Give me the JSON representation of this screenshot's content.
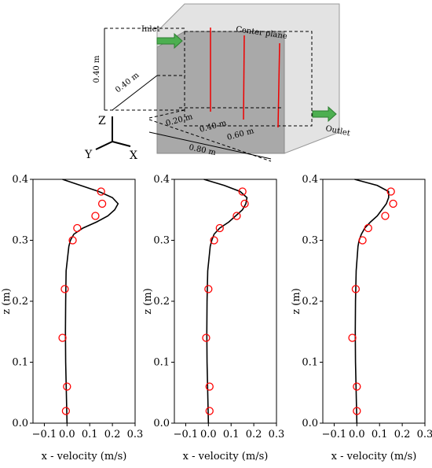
{
  "diagram": {
    "inlet": "Inlet",
    "center_plane": "Center plane",
    "height": "0.40 m",
    "depth": "0.40 m",
    "pos1": "0.20 m",
    "pos2": "0.40 m",
    "pos3": "0.60 m",
    "length": "0.80 m",
    "outlet": "Outlet",
    "axis_z": "Z",
    "axis_y": "Y",
    "axis_x": "X"
  },
  "chart_data": [
    {
      "type": "line",
      "xlabel": "x - velocity (m/s)",
      "ylabel": "z (m)",
      "xlim": [
        -0.15,
        0.3
      ],
      "ylim": [
        0,
        0.4
      ],
      "xticks": [
        {
          "value": -0.1,
          "label": "−0.1"
        },
        {
          "value": 0,
          "label": "0.0"
        },
        0.1,
        0.2,
        0.3
      ],
      "yticks": [
        {
          "value": 0,
          "label": "0.0"
        },
        0.1,
        0.2,
        0.3,
        0.4
      ],
      "series": [
        {
          "style": "line",
          "color": "#000000",
          "x": [
            0.0,
            -0.003,
            -0.006,
            -0.007,
            -0.006,
            -0.004,
            0.008,
            0.015,
            0.03,
            0.07,
            0.13,
            0.18,
            0.21,
            0.225,
            0.2,
            0.14,
            0.06,
            -0.02
          ],
          "values": [
            0,
            0.05,
            0.1,
            0.15,
            0.2,
            0.25,
            0.29,
            0.3,
            0.31,
            0.32,
            0.33,
            0.34,
            0.35,
            0.36,
            0.37,
            0.38,
            0.39,
            0.4
          ]
        },
        {
          "style": "scatter",
          "color": "#ff0000",
          "x": [
            0.15,
            0.155,
            0.125,
            0.045,
            0.025,
            -0.01,
            -0.02,
            0.0,
            -0.005
          ],
          "values": [
            0.38,
            0.36,
            0.34,
            0.32,
            0.3,
            0.22,
            0.14,
            0.06,
            0.02
          ]
        }
      ]
    },
    {
      "type": "line",
      "xlabel": "x - velocity (m/s)",
      "ylabel": "z (m)",
      "xlim": [
        -0.15,
        0.3
      ],
      "ylim": [
        0,
        0.4
      ],
      "xticks": [
        {
          "value": -0.1,
          "label": "−0.1"
        },
        {
          "value": 0,
          "label": "0.0"
        },
        0.1,
        0.2,
        0.3
      ],
      "yticks": [
        {
          "value": 0,
          "label": "0.0"
        },
        0.1,
        0.2,
        0.3,
        0.4
      ],
      "series": [
        {
          "style": "line",
          "color": "#000000",
          "x": [
            0.0,
            -0.003,
            -0.006,
            -0.007,
            -0.006,
            -0.003,
            0.008,
            0.015,
            0.025,
            0.05,
            0.09,
            0.12,
            0.15,
            0.165,
            0.17,
            0.14,
            0.07,
            -0.02
          ],
          "values": [
            0,
            0.05,
            0.1,
            0.15,
            0.2,
            0.25,
            0.29,
            0.3,
            0.31,
            0.32,
            0.33,
            0.34,
            0.35,
            0.36,
            0.37,
            0.38,
            0.39,
            0.4
          ]
        },
        {
          "style": "scatter",
          "color": "#ff0000",
          "x": [
            0.15,
            0.16,
            0.125,
            0.05,
            0.025,
            0.0,
            -0.01,
            0.005,
            0.005
          ],
          "values": [
            0.38,
            0.36,
            0.34,
            0.32,
            0.3,
            0.22,
            0.14,
            0.06,
            0.02
          ]
        }
      ]
    },
    {
      "type": "line",
      "xlabel": "x - velocity (m/s)",
      "ylabel": "z (m)",
      "xlim": [
        -0.15,
        0.3
      ],
      "ylim": [
        0,
        0.4
      ],
      "xticks": [
        {
          "value": -0.1,
          "label": "−0.1"
        },
        {
          "value": 0,
          "label": "0.0"
        },
        0.1,
        0.2,
        0.3
      ],
      "yticks": [
        {
          "value": 0,
          "label": "0.0"
        },
        0.1,
        0.2,
        0.3,
        0.4
      ],
      "series": [
        {
          "style": "line",
          "color": "#000000",
          "x": [
            0.0,
            -0.003,
            -0.006,
            -0.007,
            -0.006,
            -0.003,
            0.005,
            0.01,
            0.02,
            0.035,
            0.06,
            0.09,
            0.11,
            0.13,
            0.14,
            0.14,
            0.09,
            -0.01
          ],
          "values": [
            0,
            0.05,
            0.1,
            0.15,
            0.2,
            0.25,
            0.29,
            0.3,
            0.31,
            0.32,
            0.33,
            0.34,
            0.35,
            0.36,
            0.37,
            0.38,
            0.39,
            0.4
          ]
        },
        {
          "style": "scatter",
          "color": "#ff0000",
          "x": [
            0.15,
            0.16,
            0.125,
            0.05,
            0.025,
            -0.005,
            -0.02,
            0.0,
            0.0
          ],
          "values": [
            0.38,
            0.36,
            0.34,
            0.32,
            0.3,
            0.22,
            0.14,
            0.06,
            0.02
          ]
        }
      ]
    }
  ]
}
